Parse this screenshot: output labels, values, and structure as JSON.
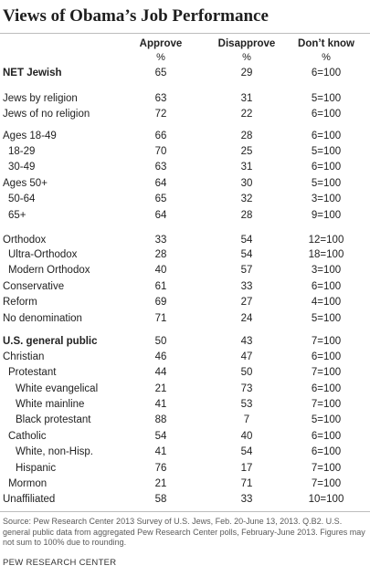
{
  "title": "Views of Obama’s Job Performance",
  "columns": {
    "approve": "Approve",
    "disapprove": "Disapprove",
    "dont_know": "Don’t know",
    "unit": "%"
  },
  "rows": [
    {
      "label": "NET Jewish",
      "approve": "65",
      "disapprove": "29",
      "dont_know": "6=100"
    },
    {
      "label": "Jews by religion",
      "approve": "63",
      "disapprove": "31",
      "dont_know": "5=100"
    },
    {
      "label": "Jews of no religion",
      "approve": "72",
      "disapprove": "22",
      "dont_know": "6=100"
    },
    {
      "label": "Ages 18-49",
      "approve": "66",
      "disapprove": "28",
      "dont_know": "6=100"
    },
    {
      "label": "18-29",
      "approve": "70",
      "disapprove": "25",
      "dont_know": "5=100"
    },
    {
      "label": "30-49",
      "approve": "63",
      "disapprove": "31",
      "dont_know": "6=100"
    },
    {
      "label": "Ages 50+",
      "approve": "64",
      "disapprove": "30",
      "dont_know": "5=100"
    },
    {
      "label": "50-64",
      "approve": "65",
      "disapprove": "32",
      "dont_know": "3=100"
    },
    {
      "label": "65+",
      "approve": "64",
      "disapprove": "28",
      "dont_know": "9=100"
    },
    {
      "label": "Orthodox",
      "approve": "33",
      "disapprove": "54",
      "dont_know": "12=100"
    },
    {
      "label": "Ultra-Orthodox",
      "approve": "28",
      "disapprove": "54",
      "dont_know": "18=100"
    },
    {
      "label": "Modern Orthodox",
      "approve": "40",
      "disapprove": "57",
      "dont_know": "3=100"
    },
    {
      "label": "Conservative",
      "approve": "61",
      "disapprove": "33",
      "dont_know": "6=100"
    },
    {
      "label": "Reform",
      "approve": "69",
      "disapprove": "27",
      "dont_know": "4=100"
    },
    {
      "label": "No denomination",
      "approve": "71",
      "disapprove": "24",
      "dont_know": "5=100"
    },
    {
      "label": "U.S. general public",
      "approve": "50",
      "disapprove": "43",
      "dont_know": "7=100"
    },
    {
      "label": "Christian",
      "approve": "46",
      "disapprove": "47",
      "dont_know": "6=100"
    },
    {
      "label": "Protestant",
      "approve": "44",
      "disapprove": "50",
      "dont_know": "7=100"
    },
    {
      "label": "White evangelical",
      "approve": "21",
      "disapprove": "73",
      "dont_know": "6=100"
    },
    {
      "label": "White mainline",
      "approve": "41",
      "disapprove": "53",
      "dont_know": "7=100"
    },
    {
      "label": "Black protestant",
      "approve": "88",
      "disapprove": "7",
      "dont_know": "5=100"
    },
    {
      "label": "Catholic",
      "approve": "54",
      "disapprove": "40",
      "dont_know": "6=100"
    },
    {
      "label": "White, non-Hisp.",
      "approve": "41",
      "disapprove": "54",
      "dont_know": "6=100"
    },
    {
      "label": "Hispanic",
      "approve": "76",
      "disapprove": "17",
      "dont_know": "7=100"
    },
    {
      "label": "Mormon",
      "approve": "21",
      "disapprove": "71",
      "dont_know": "7=100"
    },
    {
      "label": "Unaffiliated",
      "approve": "58",
      "disapprove": "33",
      "dont_know": "10=100"
    }
  ],
  "source": "Source: Pew Research Center 2013 Survey of U.S. Jews, Feb. 20-June 13, 2013. Q.B2. U.S. general public data from aggregated Pew Research Center polls, February-June 2013. Figures may not sum to 100% due to rounding.",
  "brand": "PEW RESEARCH CENTER"
}
